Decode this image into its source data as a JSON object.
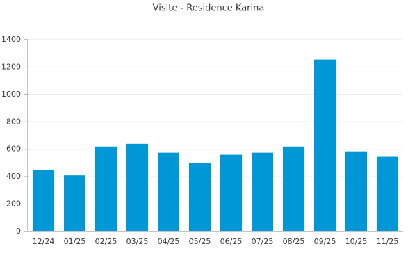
{
  "chart_data": {
    "type": "bar",
    "title": "Visite - Residence Karina",
    "categories": [
      "12/24",
      "01/25",
      "02/25",
      "03/25",
      "04/25",
      "05/25",
      "06/25",
      "07/25",
      "08/25",
      "09/25",
      "10/25",
      "11/25"
    ],
    "values": [
      450,
      410,
      620,
      640,
      575,
      500,
      560,
      575,
      620,
      1255,
      585,
      545
    ],
    "color": "#0097d6",
    "ylim": [
      0,
      1400
    ],
    "yticks": [
      0,
      200,
      400,
      600,
      800,
      1000,
      1200,
      1400
    ],
    "grid": true
  }
}
